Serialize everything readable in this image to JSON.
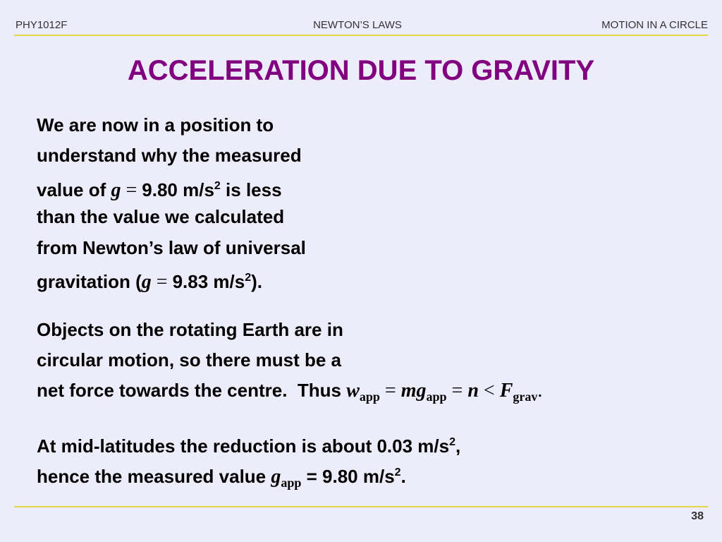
{
  "header": {
    "course": "PHY1012F",
    "topic": "NEWTON’S LAWS",
    "section": "MOTION IN A CIRCLE"
  },
  "title": "ACCELERATION DUE TO GRAVITY",
  "paragraphs": [
    [
      [
        "We are now in a position to"
      ],
      [
        "understand why the measured"
      ],
      [
        "value of ",
        "g",
        " = ",
        "9.80 m/s",
        "2",
        " is less"
      ],
      [
        "than the value we calculated"
      ],
      [
        "from Newton’s law of universal"
      ],
      [
        "gravitation (",
        "g",
        " = ",
        "9.83 m/s",
        "2",
        ")."
      ]
    ],
    [
      [
        "Objects on the rotating Earth are in"
      ],
      [
        "circular motion, so there must be a"
      ],
      [
        "net force towards the centre.  Thus ",
        "w",
        "app",
        " = ",
        "mg",
        "app",
        " = ",
        "n",
        " < ",
        "F",
        "grav",
        "."
      ]
    ],
    [
      [
        "At mid-latitudes the reduction is about 0.03 m/s",
        "2",
        ","
      ],
      [
        "hence the measured value ",
        "g",
        "app",
        " = 9.80 m/s",
        "2",
        "."
      ]
    ]
  ],
  "footer": {
    "page": 38
  }
}
